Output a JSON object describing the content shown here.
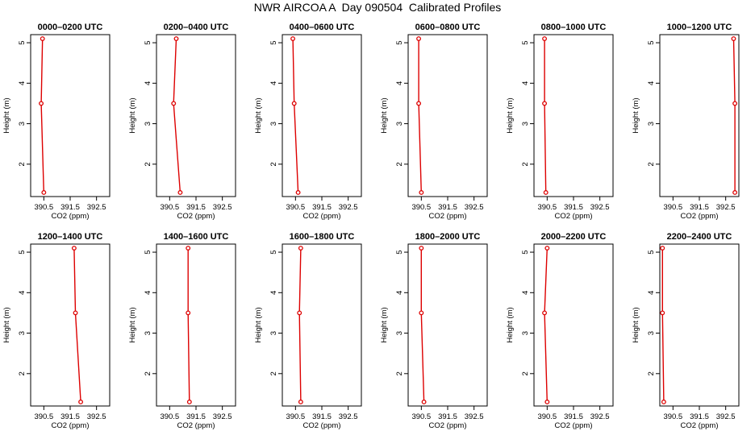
{
  "title": "NWR AIRCOA A  Day 090504  Calibrated Profiles",
  "colors": {
    "series": "#dd0000",
    "frame": "#000000"
  },
  "chart_data": [
    {
      "type": "line",
      "title": "0000–0200 UTC",
      "xlabel": "CO2 (ppm)",
      "ylabel": "Height (m)",
      "xlim": [
        390.0,
        393.0
      ],
      "ylim": [
        1.2,
        5.2
      ],
      "xticks": [
        390.5,
        391.5,
        392.5
      ],
      "yticks": [
        2,
        3,
        4,
        5
      ],
      "series": [
        {
          "points": [
            [
              390.45,
              5.1
            ],
            [
              390.4,
              3.5
            ],
            [
              390.5,
              1.3
            ]
          ]
        }
      ]
    },
    {
      "type": "line",
      "title": "0200–0400 UTC",
      "xlabel": "CO2 (ppm)",
      "ylabel": "Height (m)",
      "xlim": [
        390.0,
        393.0
      ],
      "ylim": [
        1.2,
        5.2
      ],
      "xticks": [
        390.5,
        391.5,
        392.5
      ],
      "yticks": [
        2,
        3,
        4,
        5
      ],
      "series": [
        {
          "points": [
            [
              390.75,
              5.1
            ],
            [
              390.65,
              3.5
            ],
            [
              390.9,
              1.3
            ]
          ]
        }
      ]
    },
    {
      "type": "line",
      "title": "0400–0600 UTC",
      "xlabel": "CO2 (ppm)",
      "ylabel": "Height (m)",
      "xlim": [
        390.0,
        393.0
      ],
      "ylim": [
        1.2,
        5.2
      ],
      "xticks": [
        390.5,
        391.5,
        392.5
      ],
      "yticks": [
        2,
        3,
        4,
        5
      ],
      "series": [
        {
          "points": [
            [
              390.4,
              5.1
            ],
            [
              390.45,
              3.5
            ],
            [
              390.6,
              1.3
            ]
          ]
        }
      ]
    },
    {
      "type": "line",
      "title": "0600–0800 UTC",
      "xlabel": "CO2 (ppm)",
      "ylabel": "Height (m)",
      "xlim": [
        390.0,
        393.0
      ],
      "ylim": [
        1.2,
        5.2
      ],
      "xticks": [
        390.5,
        391.5,
        392.5
      ],
      "yticks": [
        2,
        3,
        4,
        5
      ],
      "series": [
        {
          "points": [
            [
              390.4,
              5.1
            ],
            [
              390.4,
              3.5
            ],
            [
              390.5,
              1.3
            ]
          ]
        }
      ]
    },
    {
      "type": "line",
      "title": "0800–1000 UTC",
      "xlabel": "CO2 (ppm)",
      "ylabel": "Height (m)",
      "xlim": [
        390.0,
        393.0
      ],
      "ylim": [
        1.2,
        5.2
      ],
      "xticks": [
        390.5,
        391.5,
        392.5
      ],
      "yticks": [
        2,
        3,
        4,
        5
      ],
      "series": [
        {
          "points": [
            [
              390.4,
              5.1
            ],
            [
              390.4,
              3.5
            ],
            [
              390.45,
              1.3
            ]
          ]
        }
      ]
    },
    {
      "type": "line",
      "title": "1000–1200 UTC",
      "xlabel": "CO2 (ppm)",
      "ylabel": "Height (m)",
      "xlim": [
        390.0,
        393.0
      ],
      "ylim": [
        1.2,
        5.2
      ],
      "xticks": [
        390.5,
        391.5,
        392.5
      ],
      "yticks": [
        2,
        3,
        4,
        5
      ],
      "series": [
        {
          "points": [
            [
              392.8,
              5.1
            ],
            [
              392.85,
              3.5
            ],
            [
              392.85,
              1.3
            ]
          ]
        }
      ]
    },
    {
      "type": "line",
      "title": "1200–1400 UTC",
      "xlabel": "CO2 (ppm)",
      "ylabel": "Height (m)",
      "xlim": [
        390.0,
        393.0
      ],
      "ylim": [
        1.2,
        5.2
      ],
      "xticks": [
        390.5,
        391.5,
        392.5
      ],
      "yticks": [
        2,
        3,
        4,
        5
      ],
      "series": [
        {
          "points": [
            [
              391.65,
              5.1
            ],
            [
              391.7,
              3.5
            ],
            [
              391.9,
              1.3
            ]
          ]
        }
      ]
    },
    {
      "type": "line",
      "title": "1400–1600 UTC",
      "xlabel": "CO2 (ppm)",
      "ylabel": "Height (m)",
      "xlim": [
        390.0,
        393.0
      ],
      "ylim": [
        1.2,
        5.2
      ],
      "xticks": [
        390.5,
        391.5,
        392.5
      ],
      "yticks": [
        2,
        3,
        4,
        5
      ],
      "series": [
        {
          "points": [
            [
              391.2,
              5.1
            ],
            [
              391.2,
              3.5
            ],
            [
              391.25,
              1.3
            ]
          ]
        }
      ]
    },
    {
      "type": "line",
      "title": "1600–1800 UTC",
      "xlabel": "CO2 (ppm)",
      "ylabel": "Height (m)",
      "xlim": [
        390.0,
        393.0
      ],
      "ylim": [
        1.2,
        5.2
      ],
      "xticks": [
        390.5,
        391.5,
        392.5
      ],
      "yticks": [
        2,
        3,
        4,
        5
      ],
      "series": [
        {
          "points": [
            [
              390.7,
              5.1
            ],
            [
              390.65,
              3.5
            ],
            [
              390.7,
              1.3
            ]
          ]
        }
      ]
    },
    {
      "type": "line",
      "title": "1800–2000 UTC",
      "xlabel": "CO2 (ppm)",
      "ylabel": "Height (m)",
      "xlim": [
        390.0,
        393.0
      ],
      "ylim": [
        1.2,
        5.2
      ],
      "xticks": [
        390.5,
        391.5,
        392.5
      ],
      "yticks": [
        2,
        3,
        4,
        5
      ],
      "series": [
        {
          "points": [
            [
              390.5,
              5.1
            ],
            [
              390.5,
              3.5
            ],
            [
              390.6,
              1.3
            ]
          ]
        }
      ]
    },
    {
      "type": "line",
      "title": "2000–2200 UTC",
      "xlabel": "CO2 (ppm)",
      "ylabel": "Height (m)",
      "xlim": [
        390.0,
        393.0
      ],
      "ylim": [
        1.2,
        5.2
      ],
      "xticks": [
        390.5,
        391.5,
        392.5
      ],
      "yticks": [
        2,
        3,
        4,
        5
      ],
      "series": [
        {
          "points": [
            [
              390.5,
              5.1
            ],
            [
              390.4,
              3.5
            ],
            [
              390.5,
              1.3
            ]
          ]
        }
      ]
    },
    {
      "type": "line",
      "title": "2200–2400 UTC",
      "xlabel": "CO2 (ppm)",
      "ylabel": "Height (m)",
      "xlim": [
        390.0,
        393.0
      ],
      "ylim": [
        1.2,
        5.2
      ],
      "xticks": [
        390.5,
        391.5,
        392.5
      ],
      "yticks": [
        2,
        3,
        4,
        5
      ],
      "series": [
        {
          "points": [
            [
              390.1,
              5.1
            ],
            [
              390.1,
              3.5
            ],
            [
              390.15,
              1.3
            ]
          ]
        }
      ]
    }
  ]
}
